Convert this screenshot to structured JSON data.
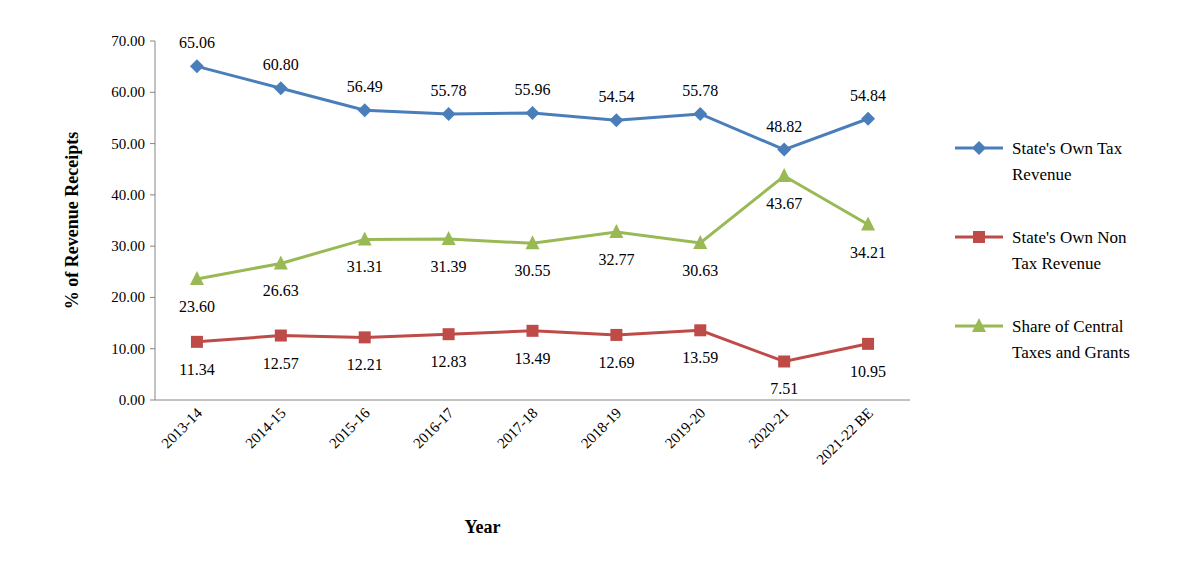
{
  "chart_data": {
    "type": "line",
    "x_label": "Year",
    "y_label": "% of Revenue Receipts",
    "categories": [
      "2013-14",
      "2014-15",
      "2015-16",
      "2016-17",
      "2017-18",
      "2018-19",
      "2019-20",
      "2020-21",
      "2021-22 BE"
    ],
    "series": [
      {
        "name": "State's Own Tax Revenue",
        "color": "#4a7ebb",
        "marker": "diamond",
        "line_style": "solid",
        "values": [
          65.06,
          60.8,
          56.49,
          55.78,
          55.96,
          54.54,
          55.78,
          48.82,
          54.84
        ],
        "value_labels": [
          "65.06",
          "60.80",
          "56.49",
          "55.78",
          "55.96",
          "54.54",
          "55.78",
          "48.82",
          "54.84"
        ]
      },
      {
        "name": "State's Own Non Tax Revenue",
        "color": "#be4b48",
        "marker": "square",
        "line_style": "solid",
        "values": [
          11.34,
          12.57,
          12.21,
          12.83,
          13.49,
          12.69,
          13.59,
          7.51,
          10.95
        ],
        "value_labels": [
          "11.34",
          "12.57",
          "12.21",
          "12.83",
          "13.49",
          "12.69",
          "13.59",
          "7.51",
          "10.95"
        ]
      },
      {
        "name": "Share of Central Taxes and Grants",
        "color": "#98b954",
        "marker": "triangle",
        "line_style": "solid",
        "values": [
          23.6,
          26.63,
          31.31,
          31.39,
          30.55,
          32.77,
          30.63,
          43.67,
          34.21
        ],
        "value_labels": [
          "23.60",
          "26.63",
          "31.31",
          "31.39",
          "30.55",
          "32.77",
          "30.63",
          "43.67",
          "34.21"
        ]
      }
    ],
    "ylim": [
      0,
      70
    ],
    "yticks": [
      {
        "value": 0,
        "label": "0.00"
      },
      {
        "value": 10,
        "label": "10.00"
      },
      {
        "value": 20,
        "label": "20.00"
      },
      {
        "value": 30,
        "label": "30.00"
      },
      {
        "value": 40,
        "label": "40.00"
      },
      {
        "value": 50,
        "label": "50.00"
      },
      {
        "value": 60,
        "label": "60.00"
      },
      {
        "value": 70,
        "label": "70.00"
      }
    ],
    "grid": false,
    "legend": "right",
    "data_labels": true
  }
}
